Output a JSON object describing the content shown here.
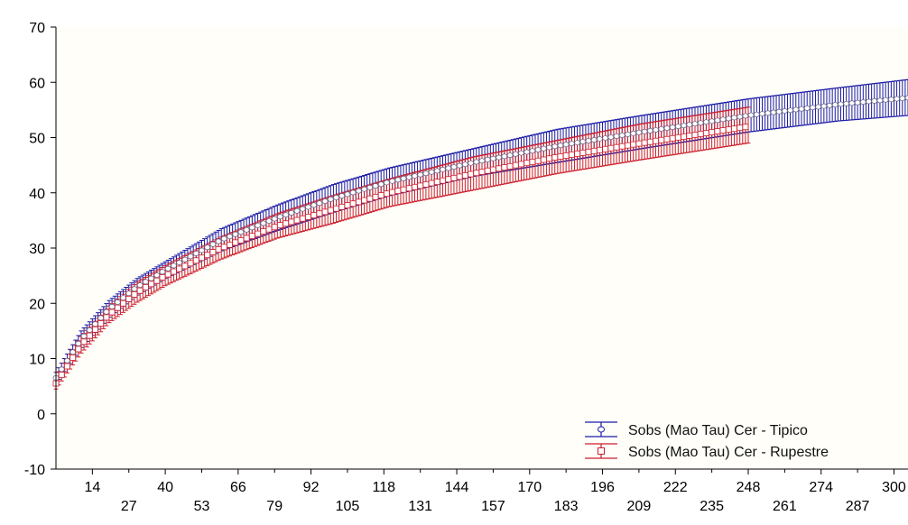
{
  "chart_data": {
    "type": "line",
    "ylim": [
      -10,
      70
    ],
    "xlim": [
      1,
      305
    ],
    "y_ticks": [
      "70",
      "60",
      "50",
      "40",
      "30",
      "20",
      "10",
      "0",
      "-10"
    ],
    "y_tick_values": [
      70,
      60,
      50,
      40,
      30,
      20,
      10,
      0,
      -10
    ],
    "x_ticks_upper": [
      "14",
      "40",
      "66",
      "92",
      "118",
      "144",
      "170",
      "196",
      "222",
      "248",
      "274",
      "300"
    ],
    "x_ticks_lower": [
      "27",
      "53",
      "79",
      "105",
      "131",
      "157",
      "183",
      "209",
      "235",
      "261",
      "287"
    ],
    "series": [
      {
        "name": "Sobs (Mao Tau) Cer - Tipico",
        "color": "#1a1aa6",
        "marker": "circle",
        "x": [
          1,
          10,
          20,
          30,
          40,
          60,
          80,
          100,
          120,
          150,
          180,
          210,
          248,
          280,
          305
        ],
        "mean": [
          6.5,
          13.5,
          19,
          23,
          26,
          31.5,
          35.5,
          39,
          42,
          45.5,
          48.5,
          51,
          54,
          56,
          57.2
        ],
        "upper": [
          7.5,
          15,
          20.5,
          24.5,
          27.5,
          33.5,
          37.8,
          41.5,
          44.5,
          48,
          51.5,
          54,
          57,
          59,
          60.5
        ],
        "lower": [
          5.5,
          12,
          17.5,
          21.5,
          24.5,
          29.5,
          33.2,
          36.5,
          39.5,
          43,
          45.5,
          48,
          51,
          53,
          54
        ]
      },
      {
        "name": "Sobs (Mao Tau) Cer - Rupestre",
        "color": "#cc1f2c",
        "marker": "square",
        "x": [
          1,
          10,
          20,
          30,
          40,
          60,
          80,
          100,
          120,
          150,
          180,
          210,
          248
        ],
        "mean": [
          5.5,
          12.5,
          18,
          22,
          25,
          30,
          34,
          37,
          40,
          43.5,
          46.5,
          49,
          52
        ],
        "upper": [
          6.8,
          14,
          19.5,
          23.8,
          26.8,
          32,
          36.2,
          39.5,
          42.5,
          46.5,
          49.5,
          52.5,
          55.5
        ],
        "lower": [
          4.5,
          11,
          16.5,
          20.2,
          23.2,
          28,
          31.8,
          34.5,
          37.5,
          40.5,
          43.5,
          46,
          49
        ]
      }
    ]
  }
}
